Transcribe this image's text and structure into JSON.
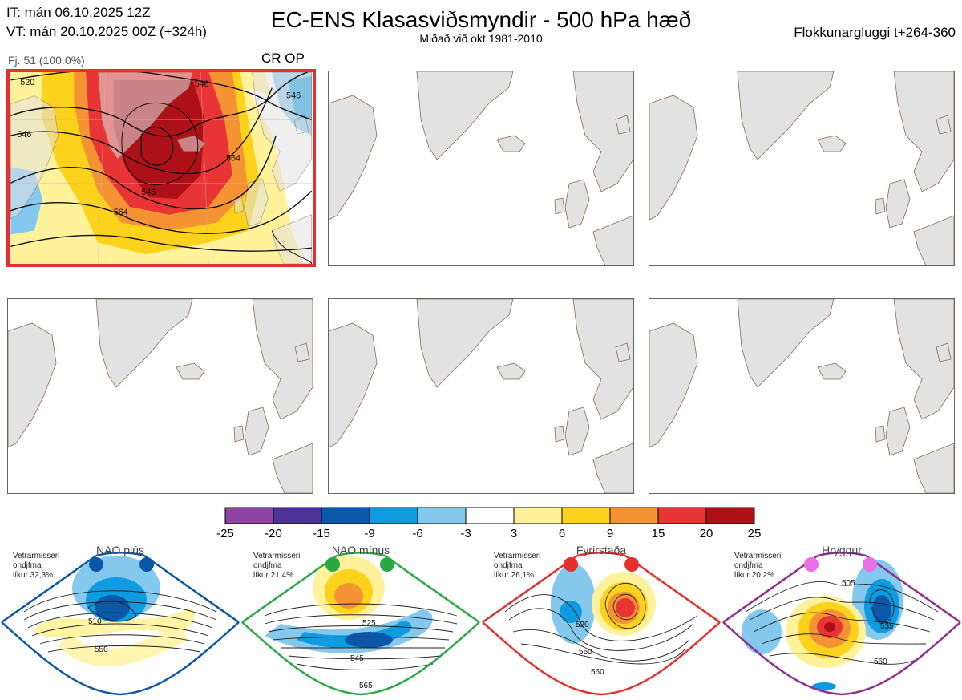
{
  "header": {
    "it_line": "IT: mán 06.10.2025 12Z",
    "vt_line": "VT: mán 20.10.2025 00Z  (+324h)",
    "title": "EC-ENS Klasasviðsmyndir - 500 hPa hæð",
    "subtitle": "Miðað við okt 1981-2010",
    "window": "Flokkunargluggi t+264-360"
  },
  "active_panel": {
    "count_label": "Fj. 51 (100.0%)",
    "regime_label": "CR OP",
    "contour_labels": [
      "520",
      "546",
      "546",
      "564",
      "546",
      "564",
      "546"
    ]
  },
  "colorbar": {
    "ticks": [
      "-25",
      "-20",
      "-15",
      "-9",
      "-6",
      "-3",
      "3",
      "6",
      "9",
      "15",
      "20",
      "25"
    ],
    "colors": [
      "#8e44a0",
      "#4a3296",
      "#0c58a8",
      "#0f9be0",
      "#85c8ee",
      "#ffffff",
      "#fff29a",
      "#fcd21c",
      "#f59233",
      "#e83434",
      "#ad1016"
    ]
  },
  "regimes": [
    {
      "name": "NAO plús",
      "info": [
        "Vetrarmisseri",
        "ondjfma",
        "líkur 32,3%"
      ],
      "border_color": "#0a57a5",
      "dot_color": "#0a57a5",
      "labels": [
        "510",
        "550"
      ]
    },
    {
      "name": "NAO mínus",
      "info": [
        "Vetrarmisseri",
        "ondjfma",
        "líkur 21,4%"
      ],
      "border_color": "#2aa844",
      "dot_color": "#2aa844",
      "labels": [
        "525",
        "545",
        "565"
      ]
    },
    {
      "name": "Fyrirstaða",
      "info": [
        "Vetrarmisseri",
        "ondjfma",
        "líkur 26,1%"
      ],
      "border_color": "#e3302c",
      "dot_color": "#e3302c",
      "labels": [
        "520",
        "550",
        "560"
      ]
    },
    {
      "name": "Hryggur",
      "info": [
        "Vetrarmisseri",
        "ondjfma",
        "líkur 20,2%"
      ],
      "border_color": "#8e2e8e",
      "dot_color": "#ea6ee8",
      "labels": [
        "505",
        "535",
        "560"
      ]
    }
  ]
}
